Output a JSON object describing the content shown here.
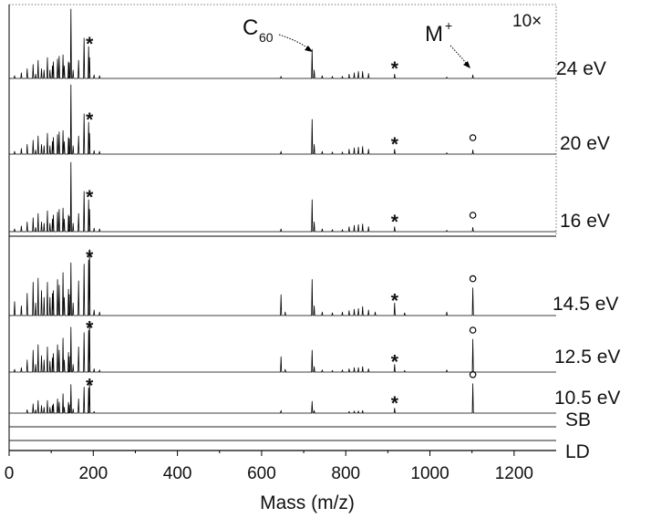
{
  "chart_data": {
    "type": "line",
    "title": "",
    "xlabel": "Mass (m/z)",
    "ylabel": "",
    "xlim": [
      0,
      1300
    ],
    "xticks": [
      0,
      200,
      400,
      600,
      800,
      1000,
      1200
    ],
    "tick_labels": [
      "0",
      "200",
      "400",
      "600",
      "800",
      "1000",
      "1200"
    ],
    "scale_factor": "10×",
    "scale_factor_applies_to": [
      "24 eV",
      "20 eV",
      "16 eV"
    ],
    "annotations": {
      "c60": {
        "main": "C",
        "sub": "60",
        "mass": 720
      },
      "mplus": {
        "main": "M",
        "sup": "+",
        "mass": 1102
      }
    },
    "series": [
      {
        "name": "24 eV",
        "star_masses": [
          191,
          916
        ],
        "circle_masses": [],
        "peaks": [
          [
            13,
            0.04
          ],
          [
            29,
            0.08
          ],
          [
            43,
            0.14
          ],
          [
            57,
            0.2
          ],
          [
            63,
            0.06
          ],
          [
            69,
            0.26
          ],
          [
            77,
            0.14
          ],
          [
            83,
            0.12
          ],
          [
            91,
            0.3
          ],
          [
            97,
            0.12
          ],
          [
            103,
            0.18
          ],
          [
            105,
            0.24
          ],
          [
            115,
            0.28
          ],
          [
            119,
            0.32
          ],
          [
            128,
            0.34
          ],
          [
            131,
            0.18
          ],
          [
            141,
            0.24
          ],
          [
            143,
            0.22
          ],
          [
            147,
            1.0
          ],
          [
            152,
            0.12
          ],
          [
            165,
            0.26
          ],
          [
            178,
            0.58
          ],
          [
            189,
            0.46
          ],
          [
            191,
            0.3
          ],
          [
            202,
            0.05
          ],
          [
            215,
            0.04
          ],
          [
            646,
            0.03
          ],
          [
            720,
            0.42
          ],
          [
            725,
            0.12
          ],
          [
            744,
            0.04
          ],
          [
            768,
            0.03
          ],
          [
            792,
            0.03
          ],
          [
            808,
            0.06
          ],
          [
            820,
            0.08
          ],
          [
            830,
            0.1
          ],
          [
            840,
            0.1
          ],
          [
            854,
            0.07
          ],
          [
            916,
            0.06
          ],
          [
            1040,
            0.02
          ],
          [
            1102,
            0.05
          ]
        ]
      },
      {
        "name": "20 eV",
        "star_masses": [
          191,
          916
        ],
        "circle_masses": [
          1102
        ],
        "peaks": [
          [
            13,
            0.04
          ],
          [
            29,
            0.08
          ],
          [
            43,
            0.14
          ],
          [
            57,
            0.2
          ],
          [
            63,
            0.06
          ],
          [
            69,
            0.26
          ],
          [
            77,
            0.14
          ],
          [
            83,
            0.12
          ],
          [
            91,
            0.3
          ],
          [
            97,
            0.12
          ],
          [
            103,
            0.18
          ],
          [
            105,
            0.24
          ],
          [
            115,
            0.28
          ],
          [
            119,
            0.32
          ],
          [
            128,
            0.34
          ],
          [
            131,
            0.18
          ],
          [
            141,
            0.24
          ],
          [
            143,
            0.22
          ],
          [
            147,
            1.0
          ],
          [
            152,
            0.12
          ],
          [
            165,
            0.26
          ],
          [
            178,
            0.58
          ],
          [
            189,
            0.46
          ],
          [
            191,
            0.3
          ],
          [
            202,
            0.05
          ],
          [
            215,
            0.04
          ],
          [
            646,
            0.04
          ],
          [
            720,
            0.5
          ],
          [
            725,
            0.14
          ],
          [
            744,
            0.04
          ],
          [
            768,
            0.03
          ],
          [
            792,
            0.03
          ],
          [
            808,
            0.07
          ],
          [
            820,
            0.09
          ],
          [
            830,
            0.1
          ],
          [
            840,
            0.11
          ],
          [
            854,
            0.07
          ],
          [
            916,
            0.07
          ],
          [
            1040,
            0.02
          ],
          [
            1102,
            0.06
          ]
        ]
      },
      {
        "name": "16 eV",
        "star_masses": [
          191,
          916
        ],
        "circle_masses": [
          1102
        ],
        "peaks": [
          [
            13,
            0.04
          ],
          [
            29,
            0.08
          ],
          [
            43,
            0.14
          ],
          [
            57,
            0.2
          ],
          [
            63,
            0.06
          ],
          [
            69,
            0.26
          ],
          [
            77,
            0.14
          ],
          [
            83,
            0.12
          ],
          [
            91,
            0.3
          ],
          [
            97,
            0.12
          ],
          [
            103,
            0.18
          ],
          [
            105,
            0.24
          ],
          [
            115,
            0.28
          ],
          [
            119,
            0.32
          ],
          [
            128,
            0.34
          ],
          [
            131,
            0.18
          ],
          [
            141,
            0.24
          ],
          [
            143,
            0.22
          ],
          [
            147,
            1.0
          ],
          [
            152,
            0.12
          ],
          [
            165,
            0.26
          ],
          [
            178,
            0.58
          ],
          [
            189,
            0.46
          ],
          [
            191,
            0.32
          ],
          [
            202,
            0.05
          ],
          [
            215,
            0.04
          ],
          [
            646,
            0.04
          ],
          [
            720,
            0.46
          ],
          [
            725,
            0.14
          ],
          [
            744,
            0.04
          ],
          [
            768,
            0.03
          ],
          [
            792,
            0.03
          ],
          [
            808,
            0.07
          ],
          [
            820,
            0.09
          ],
          [
            830,
            0.1
          ],
          [
            840,
            0.11
          ],
          [
            854,
            0.07
          ],
          [
            916,
            0.07
          ],
          [
            1040,
            0.02
          ],
          [
            1102,
            0.06
          ]
        ]
      },
      {
        "name": "14.5 eV",
        "star_masses": [
          191,
          916
        ],
        "circle_masses": [
          1102
        ],
        "peaks": [
          [
            13,
            0.2
          ],
          [
            29,
            0.14
          ],
          [
            43,
            0.32
          ],
          [
            57,
            0.48
          ],
          [
            63,
            0.18
          ],
          [
            69,
            0.54
          ],
          [
            77,
            0.36
          ],
          [
            83,
            0.26
          ],
          [
            91,
            0.48
          ],
          [
            97,
            0.26
          ],
          [
            103,
            0.32
          ],
          [
            105,
            0.36
          ],
          [
            115,
            0.52
          ],
          [
            119,
            0.44
          ],
          [
            128,
            0.62
          ],
          [
            131,
            0.26
          ],
          [
            141,
            0.38
          ],
          [
            143,
            0.3
          ],
          [
            147,
            0.76
          ],
          [
            152,
            0.18
          ],
          [
            165,
            0.5
          ],
          [
            178,
            0.74
          ],
          [
            189,
            0.8
          ],
          [
            191,
            0.95
          ],
          [
            202,
            0.08
          ],
          [
            215,
            0.05
          ],
          [
            646,
            0.3
          ],
          [
            656,
            0.05
          ],
          [
            720,
            0.52
          ],
          [
            725,
            0.14
          ],
          [
            744,
            0.05
          ],
          [
            768,
            0.04
          ],
          [
            792,
            0.05
          ],
          [
            808,
            0.07
          ],
          [
            820,
            0.09
          ],
          [
            830,
            0.1
          ],
          [
            840,
            0.13
          ],
          [
            854,
            0.08
          ],
          [
            870,
            0.05
          ],
          [
            916,
            0.18
          ],
          [
            940,
            0.04
          ],
          [
            1040,
            0.05
          ],
          [
            1102,
            0.4
          ]
        ]
      },
      {
        "name": "12.5 eV",
        "star_masses": [
          191,
          916
        ],
        "circle_masses": [
          1102
        ],
        "peaks": [
          [
            13,
            0.05
          ],
          [
            29,
            0.08
          ],
          [
            43,
            0.22
          ],
          [
            57,
            0.4
          ],
          [
            63,
            0.14
          ],
          [
            69,
            0.5
          ],
          [
            77,
            0.3
          ],
          [
            83,
            0.22
          ],
          [
            91,
            0.46
          ],
          [
            97,
            0.2
          ],
          [
            103,
            0.26
          ],
          [
            105,
            0.34
          ],
          [
            115,
            0.5
          ],
          [
            119,
            0.4
          ],
          [
            128,
            0.62
          ],
          [
            131,
            0.22
          ],
          [
            141,
            0.36
          ],
          [
            143,
            0.28
          ],
          [
            147,
            0.82
          ],
          [
            152,
            0.14
          ],
          [
            165,
            0.46
          ],
          [
            178,
            0.72
          ],
          [
            189,
            0.76
          ],
          [
            191,
            0.92
          ],
          [
            202,
            0.06
          ],
          [
            215,
            0.04
          ],
          [
            646,
            0.28
          ],
          [
            656,
            0.05
          ],
          [
            720,
            0.4
          ],
          [
            725,
            0.1
          ],
          [
            744,
            0.04
          ],
          [
            768,
            0.03
          ],
          [
            792,
            0.04
          ],
          [
            808,
            0.06
          ],
          [
            820,
            0.08
          ],
          [
            830,
            0.08
          ],
          [
            840,
            0.1
          ],
          [
            854,
            0.06
          ],
          [
            916,
            0.14
          ],
          [
            940,
            0.03
          ],
          [
            1040,
            0.04
          ],
          [
            1102,
            0.6
          ]
        ]
      },
      {
        "name": "10.5 eV",
        "star_masses": [
          191,
          916
        ],
        "circle_masses": [
          1102
        ],
        "peaks": [
          [
            43,
            0.08
          ],
          [
            57,
            0.22
          ],
          [
            63,
            0.08
          ],
          [
            69,
            0.3
          ],
          [
            77,
            0.18
          ],
          [
            83,
            0.14
          ],
          [
            91,
            0.3
          ],
          [
            97,
            0.14
          ],
          [
            103,
            0.18
          ],
          [
            105,
            0.22
          ],
          [
            115,
            0.34
          ],
          [
            119,
            0.26
          ],
          [
            128,
            0.46
          ],
          [
            131,
            0.14
          ],
          [
            141,
            0.26
          ],
          [
            143,
            0.2
          ],
          [
            147,
            0.68
          ],
          [
            152,
            0.1
          ],
          [
            165,
            0.34
          ],
          [
            178,
            0.62
          ],
          [
            189,
            0.6
          ],
          [
            191,
            0.72
          ],
          [
            202,
            0.04
          ],
          [
            646,
            0.06
          ],
          [
            720,
            0.28
          ],
          [
            725,
            0.06
          ],
          [
            808,
            0.04
          ],
          [
            820,
            0.05
          ],
          [
            830,
            0.05
          ],
          [
            840,
            0.06
          ],
          [
            916,
            0.12
          ],
          [
            1102,
            0.7
          ]
        ]
      },
      {
        "name": "SB",
        "star_masses": [],
        "circle_masses": [],
        "peaks": []
      },
      {
        "name": "LD",
        "star_masses": [],
        "circle_masses": [],
        "peaks": []
      }
    ]
  },
  "markers": {
    "star": "*"
  }
}
